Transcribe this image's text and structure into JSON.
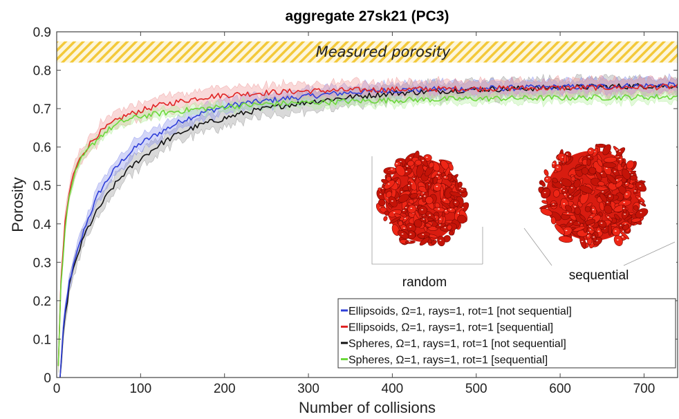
{
  "chart_data": {
    "type": "line",
    "title": "aggregate 27sk21 (PC3)",
    "xlabel": "Number of collisions",
    "ylabel": "Porosity",
    "xlim": [
      0,
      740
    ],
    "ylim": [
      0,
      0.9
    ],
    "xticks": [
      0,
      100,
      200,
      300,
      400,
      500,
      600,
      700
    ],
    "yticks": [
      0,
      0.1,
      0.2,
      0.3,
      0.4,
      0.5,
      0.6,
      0.7,
      0.8,
      0.9
    ],
    "ytick_labels": [
      "0",
      "0.1",
      "0.2",
      "0.3",
      "0.4",
      "0.5",
      "0.6",
      "0.7",
      "0.8",
      "0.9"
    ],
    "grid": false,
    "measured_band": {
      "label": "Measured porosity",
      "ymin": 0.82,
      "ymax": 0.875,
      "color": "#f3c93a"
    },
    "legend_position": "lower-right",
    "series": [
      {
        "name": "Ellipsoids, Ω=1, rays=1, rot=1 [not sequential]",
        "color": "#2f3fd8",
        "band_color": "#8c94ec",
        "x": [
          4,
          8,
          15,
          25,
          35,
          50,
          65,
          80,
          100,
          125,
          150,
          175,
          200,
          225,
          250,
          275,
          300,
          325,
          350,
          375,
          400,
          450,
          500,
          550,
          600,
          650,
          700,
          740
        ],
        "y": [
          0.0,
          0.13,
          0.25,
          0.33,
          0.4,
          0.48,
          0.53,
          0.57,
          0.61,
          0.64,
          0.67,
          0.69,
          0.705,
          0.715,
          0.72,
          0.727,
          0.732,
          0.738,
          0.742,
          0.745,
          0.748,
          0.75,
          0.752,
          0.754,
          0.756,
          0.758,
          0.76,
          0.762
        ],
        "spread": 0.018
      },
      {
        "name": "Ellipsoids, Ω=1, rays=1, rot=1 [sequential]",
        "color": "#e02424",
        "band_color": "#f09a9a",
        "x": [
          2,
          5,
          10,
          15,
          20,
          30,
          40,
          50,
          65,
          80,
          100,
          125,
          150,
          175,
          200,
          250,
          300,
          350,
          400,
          450,
          500,
          550,
          600,
          650,
          700,
          740
        ],
        "y": [
          0.03,
          0.25,
          0.4,
          0.48,
          0.53,
          0.58,
          0.61,
          0.635,
          0.66,
          0.68,
          0.695,
          0.71,
          0.72,
          0.73,
          0.735,
          0.742,
          0.746,
          0.748,
          0.75,
          0.751,
          0.752,
          0.753,
          0.754,
          0.755,
          0.756,
          0.757
        ],
        "spread": 0.02
      },
      {
        "name": "Spheres, Ω=1, rays=1, rot=1 [not sequential]",
        "color": "#111111",
        "band_color": "#9a9a9a",
        "x": [
          4,
          8,
          15,
          25,
          35,
          50,
          65,
          80,
          100,
          125,
          150,
          175,
          200,
          225,
          250,
          275,
          300,
          325,
          350,
          375,
          400,
          450,
          500,
          550,
          600,
          650,
          700,
          740
        ],
        "y": [
          0.0,
          0.12,
          0.24,
          0.32,
          0.38,
          0.44,
          0.49,
          0.53,
          0.57,
          0.61,
          0.64,
          0.66,
          0.675,
          0.69,
          0.7,
          0.71,
          0.717,
          0.724,
          0.73,
          0.735,
          0.74,
          0.745,
          0.75,
          0.752,
          0.755,
          0.757,
          0.759,
          0.76
        ],
        "spread": 0.022
      },
      {
        "name": "Spheres, Ω=1, rays=1, rot=1 [sequential]",
        "color": "#6bd83a",
        "band_color": "#b5eea0",
        "x": [
          2,
          5,
          10,
          15,
          20,
          30,
          40,
          50,
          65,
          80,
          100,
          125,
          150,
          175,
          200,
          250,
          300,
          350,
          400,
          450,
          500,
          550,
          600,
          650,
          700,
          740
        ],
        "y": [
          0.03,
          0.24,
          0.39,
          0.47,
          0.52,
          0.57,
          0.6,
          0.625,
          0.65,
          0.668,
          0.68,
          0.688,
          0.695,
          0.7,
          0.705,
          0.712,
          0.716,
          0.719,
          0.722,
          0.724,
          0.726,
          0.727,
          0.728,
          0.729,
          0.73,
          0.731
        ],
        "spread": 0.012
      }
    ],
    "insets": [
      {
        "label": "random"
      },
      {
        "label": "sequential"
      }
    ]
  }
}
